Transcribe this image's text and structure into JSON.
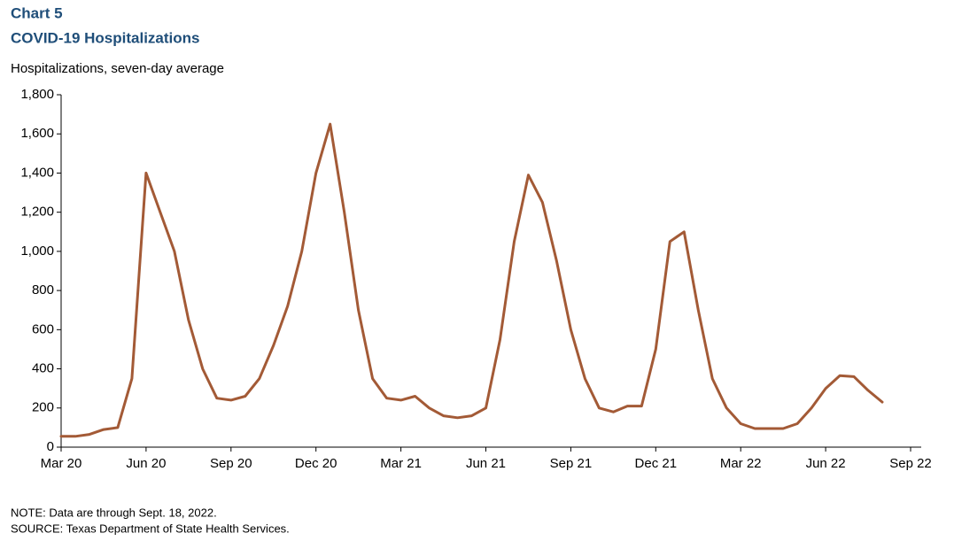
{
  "chart_data": {
    "type": "line",
    "title": "Chart 5",
    "subtitle": "COVID-19 Hospitalizations",
    "y_label": "Hospitalizations, seven-day average",
    "note": "NOTE: Data are through Sept. 18, 2022.",
    "source": "SOURCE: Texas Department of State Health Services.",
    "color": "#a35a36",
    "categories": [
      "Mar 20",
      null,
      null,
      null,
      null,
      null,
      "Jun 20",
      null,
      null,
      null,
      null,
      null,
      "Sep 20",
      null,
      null,
      null,
      null,
      null,
      "Dec 20",
      null,
      null,
      null,
      null,
      null,
      "Mar 21",
      null,
      null,
      null,
      null,
      null,
      "Jun 21",
      null,
      null,
      null,
      null,
      null,
      "Sep 21",
      null,
      null,
      null,
      null,
      null,
      "Dec 21",
      null,
      null,
      null,
      null,
      null,
      "Mar 22",
      null,
      null,
      null,
      null,
      null,
      "Jun 22",
      null,
      null,
      null,
      null,
      null,
      "Sep 22"
    ],
    "values": [
      55,
      55,
      65,
      90,
      100,
      350,
      1400,
      1200,
      1000,
      650,
      400,
      250,
      240,
      260,
      350,
      520,
      720,
      1000,
      1400,
      1650,
      1200,
      700,
      350,
      250,
      240,
      260,
      200,
      160,
      150,
      160,
      200,
      550,
      1050,
      1390,
      1250,
      950,
      600,
      350,
      200,
      180,
      210,
      210,
      500,
      1050,
      1100,
      700,
      350,
      200,
      120,
      95,
      95,
      95,
      120,
      200,
      300,
      365,
      360,
      290,
      230,
      null,
      null
    ],
    "ylim": [
      0,
      1800
    ],
    "yticks": [
      0,
      200,
      400,
      600,
      800,
      {
        "value": 1000,
        "label": "1,000"
      },
      {
        "value": 1200,
        "label": "1,200"
      },
      {
        "value": 1400,
        "label": "1,400"
      },
      {
        "value": 1600,
        "label": "1,600"
      },
      {
        "value": 1800,
        "label": "1,800"
      }
    ],
    "grid": false
  }
}
